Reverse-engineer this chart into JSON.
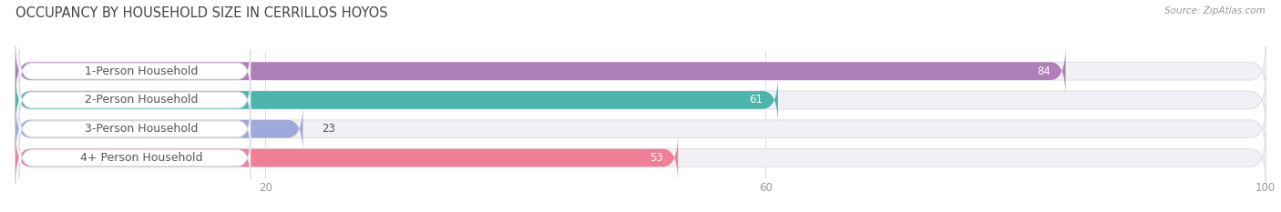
{
  "title": "OCCUPANCY BY HOUSEHOLD SIZE IN CERRILLOS HOYOS",
  "source": "Source: ZipAtlas.com",
  "categories": [
    "1-Person Household",
    "2-Person Household",
    "3-Person Household",
    "4+ Person Household"
  ],
  "values": [
    84,
    61,
    23,
    53
  ],
  "bar_colors": [
    "#b07eb8",
    "#4db6ac",
    "#9fa8da",
    "#f08098"
  ],
  "bar_bg_color": "#f0f0f5",
  "xlim": [
    0,
    100
  ],
  "xticks": [
    20,
    60,
    100
  ],
  "title_fontsize": 10.5,
  "label_fontsize": 9,
  "value_fontsize": 8.5,
  "bg_color": "#ffffff",
  "bar_height": 0.62,
  "figsize": [
    14.06,
    2.33
  ],
  "dpi": 100
}
